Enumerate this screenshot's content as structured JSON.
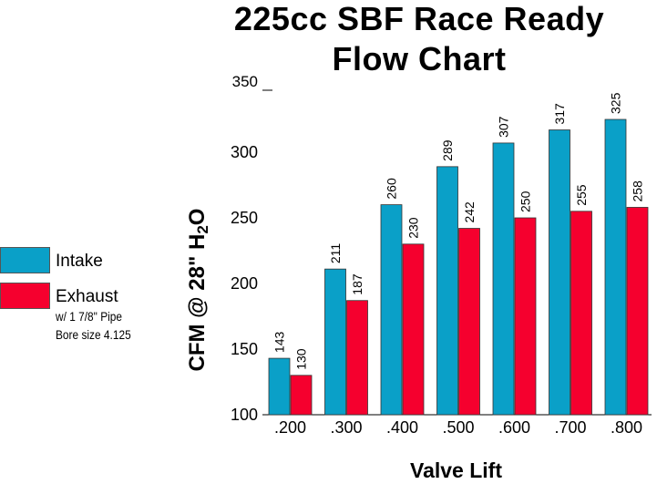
{
  "chart_data": {
    "type": "bar",
    "title_line1": "225cc SBF Race Ready",
    "title_line2": "Flow Chart",
    "xlabel": "Valve Lift",
    "ylabel_main": "CFM @ 28\" H",
    "ylabel_sub": "2",
    "ylabel_tail": "O",
    "categories": [
      ".200",
      ".300",
      ".400",
      ".500",
      ".600",
      ".700",
      ".800"
    ],
    "series": [
      {
        "name": "Intake",
        "color": "#0aa0c8",
        "values": [
          143,
          211,
          260,
          289,
          307,
          317,
          325
        ]
      },
      {
        "name": "Exhaust",
        "color": "#f5002e",
        "values": [
          130,
          187,
          230,
          242,
          250,
          255,
          258
        ]
      }
    ],
    "ylim": [
      100,
      350
    ],
    "yticks": [
      100,
      150,
      200,
      250,
      300,
      350
    ],
    "legend_note_line1": "w/ 1 7/8\" Pipe",
    "legend_note_line2": "Bore size 4.125"
  }
}
